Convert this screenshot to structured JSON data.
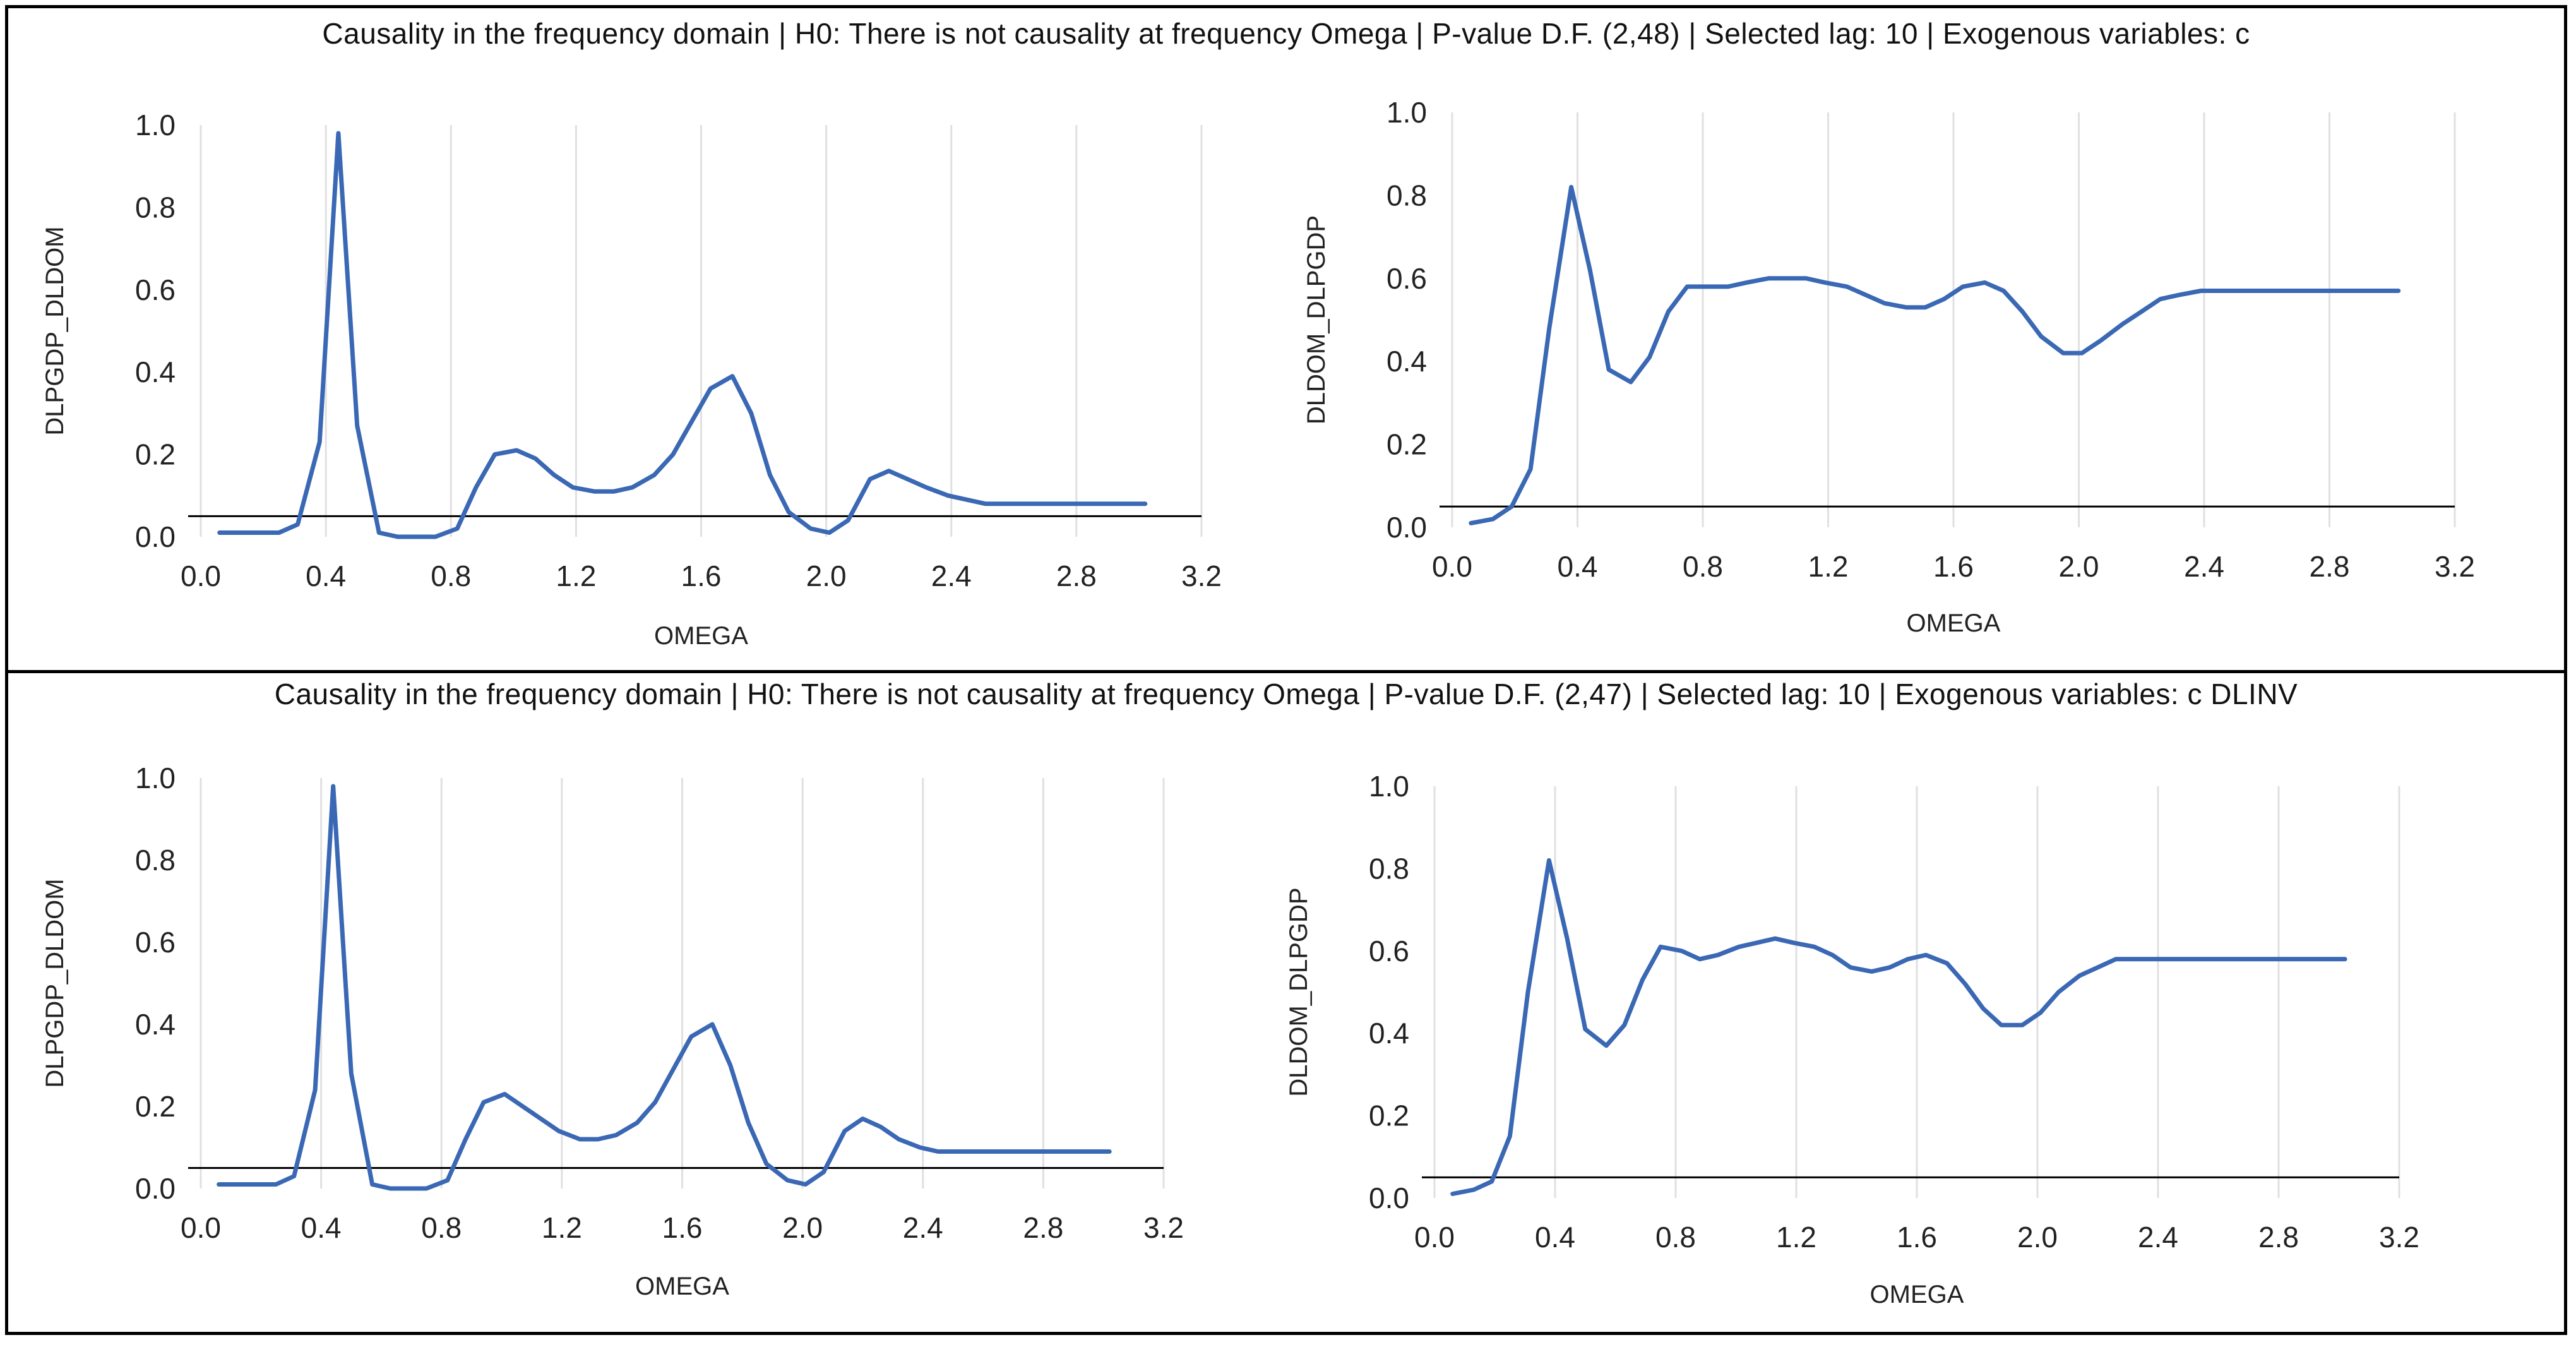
{
  "panels": [
    {
      "title": "Causality in the frequency domain | H0: There is not causality at frequency Omega | P-value D.F. (2,48) | Selected lag: 10 | Exogenous variables: c"
    },
    {
      "title": "Causality in the frequency domain | H0: There is not causality at frequency Omega | P-value D.F. (2,47) | Selected lag: 10 | Exogenous variables: c DLINV"
    }
  ],
  "colors": {
    "line": "#3A68B4",
    "grid": "#E0E0E0",
    "axis": "#000000"
  },
  "chart_data": [
    {
      "type": "line",
      "panel": 1,
      "position": "top-left",
      "xlabel": "OMEGA",
      "ylabel": "DLPGDP_DLDOM",
      "xlim": [
        0,
        3.2
      ],
      "ylim": [
        0,
        1.0
      ],
      "significance_line": 0.05,
      "x_ticks": [
        "0.0",
        "0.4",
        "0.8",
        "1.2",
        "1.6",
        "2.0",
        "2.4",
        "2.8",
        "3.2"
      ],
      "y_ticks": [
        "0.0",
        "0.2",
        "0.4",
        "0.6",
        "0.8",
        "1.0"
      ],
      "x": [
        0.06,
        0.13,
        0.19,
        0.25,
        0.31,
        0.38,
        0.44,
        0.5,
        0.57,
        0.63,
        0.69,
        0.75,
        0.82,
        0.88,
        0.94,
        1.01,
        1.07,
        1.13,
        1.19,
        1.26,
        1.32,
        1.38,
        1.45,
        1.51,
        1.57,
        1.63,
        1.7,
        1.76,
        1.82,
        1.88,
        1.95,
        2.01,
        2.07,
        2.14,
        2.2,
        2.26,
        2.32,
        2.39,
        2.45,
        2.51,
        2.58,
        2.64,
        2.7,
        2.76,
        2.83,
        2.89,
        2.95,
        3.02
      ],
      "y": [
        0.01,
        0.01,
        0.01,
        0.01,
        0.03,
        0.23,
        0.98,
        0.27,
        0.01,
        0.0,
        0.0,
        0.0,
        0.02,
        0.12,
        0.2,
        0.21,
        0.19,
        0.15,
        0.12,
        0.11,
        0.11,
        0.12,
        0.15,
        0.2,
        0.28,
        0.36,
        0.39,
        0.3,
        0.15,
        0.06,
        0.02,
        0.01,
        0.04,
        0.14,
        0.16,
        0.14,
        0.12,
        0.1,
        0.09,
        0.08,
        0.08,
        0.08,
        0.08,
        0.08,
        0.08,
        0.08,
        0.08,
        0.08
      ]
    },
    {
      "type": "line",
      "panel": 1,
      "position": "top-right",
      "xlabel": "OMEGA",
      "ylabel": "DLDOM_DLPGDP",
      "xlim": [
        0,
        3.2
      ],
      "ylim": [
        0,
        1.0
      ],
      "significance_line": 0.05,
      "x_ticks": [
        "0.0",
        "0.4",
        "0.8",
        "1.2",
        "1.6",
        "2.0",
        "2.4",
        "2.8",
        "3.2"
      ],
      "y_ticks": [
        "0.0",
        "0.2",
        "0.4",
        "0.6",
        "0.8",
        "1.0"
      ],
      "x": [
        0.06,
        0.13,
        0.19,
        0.25,
        0.31,
        0.38,
        0.44,
        0.5,
        0.57,
        0.63,
        0.69,
        0.75,
        0.82,
        0.88,
        0.94,
        1.01,
        1.07,
        1.13,
        1.19,
        1.26,
        1.32,
        1.38,
        1.45,
        1.51,
        1.57,
        1.63,
        1.7,
        1.76,
        1.82,
        1.88,
        1.95,
        2.01,
        2.07,
        2.14,
        2.2,
        2.26,
        2.32,
        2.39,
        2.45,
        2.51,
        2.58,
        2.64,
        2.7,
        2.76,
        2.83,
        2.89,
        2.95,
        3.02
      ],
      "y": [
        0.01,
        0.02,
        0.05,
        0.14,
        0.48,
        0.82,
        0.62,
        0.38,
        0.35,
        0.41,
        0.52,
        0.58,
        0.58,
        0.58,
        0.59,
        0.6,
        0.6,
        0.6,
        0.59,
        0.58,
        0.56,
        0.54,
        0.53,
        0.53,
        0.55,
        0.58,
        0.59,
        0.57,
        0.52,
        0.46,
        0.42,
        0.42,
        0.45,
        0.49,
        0.52,
        0.55,
        0.56,
        0.57,
        0.57,
        0.57,
        0.57,
        0.57,
        0.57,
        0.57,
        0.57,
        0.57,
        0.57,
        0.57
      ]
    },
    {
      "type": "line",
      "panel": 2,
      "position": "bottom-left",
      "xlabel": "OMEGA",
      "ylabel": "DLPGDP_DLDOM",
      "xlim": [
        0,
        3.2
      ],
      "ylim": [
        0,
        1.0
      ],
      "significance_line": 0.05,
      "x_ticks": [
        "0.0",
        "0.4",
        "0.8",
        "1.2",
        "1.6",
        "2.0",
        "2.4",
        "2.8",
        "3.2"
      ],
      "y_ticks": [
        "0.0",
        "0.2",
        "0.4",
        "0.6",
        "0.8",
        "1.0"
      ],
      "x": [
        0.06,
        0.13,
        0.19,
        0.25,
        0.31,
        0.38,
        0.44,
        0.5,
        0.57,
        0.63,
        0.69,
        0.75,
        0.82,
        0.88,
        0.94,
        1.01,
        1.07,
        1.13,
        1.19,
        1.26,
        1.32,
        1.38,
        1.45,
        1.51,
        1.57,
        1.63,
        1.7,
        1.76,
        1.82,
        1.88,
        1.95,
        2.01,
        2.07,
        2.14,
        2.2,
        2.26,
        2.32,
        2.39,
        2.45,
        2.51,
        2.58,
        2.64,
        2.7,
        2.76,
        2.83,
        2.89,
        2.95,
        3.02
      ],
      "y": [
        0.01,
        0.01,
        0.01,
        0.01,
        0.03,
        0.24,
        0.98,
        0.28,
        0.01,
        0.0,
        0.0,
        0.0,
        0.02,
        0.12,
        0.21,
        0.23,
        0.2,
        0.17,
        0.14,
        0.12,
        0.12,
        0.13,
        0.16,
        0.21,
        0.29,
        0.37,
        0.4,
        0.3,
        0.16,
        0.06,
        0.02,
        0.01,
        0.04,
        0.14,
        0.17,
        0.15,
        0.12,
        0.1,
        0.09,
        0.09,
        0.09,
        0.09,
        0.09,
        0.09,
        0.09,
        0.09,
        0.09,
        0.09
      ]
    },
    {
      "type": "line",
      "panel": 2,
      "position": "bottom-right",
      "xlabel": "OMEGA",
      "ylabel": "DLDOM_DLPGDP",
      "xlim": [
        0,
        3.2
      ],
      "ylim": [
        0,
        1.0
      ],
      "significance_line": 0.05,
      "x_ticks": [
        "0.0",
        "0.4",
        "0.8",
        "1.2",
        "1.6",
        "2.0",
        "2.4",
        "2.8",
        "3.2"
      ],
      "y_ticks": [
        "0.0",
        "0.2",
        "0.4",
        "0.6",
        "0.8",
        "1.0"
      ],
      "x": [
        0.06,
        0.13,
        0.19,
        0.25,
        0.31,
        0.38,
        0.44,
        0.5,
        0.57,
        0.63,
        0.69,
        0.75,
        0.82,
        0.88,
        0.94,
        1.01,
        1.07,
        1.13,
        1.19,
        1.26,
        1.32,
        1.38,
        1.45,
        1.51,
        1.57,
        1.63,
        1.7,
        1.76,
        1.82,
        1.88,
        1.95,
        2.01,
        2.07,
        2.14,
        2.2,
        2.26,
        2.32,
        2.39,
        2.45,
        2.51,
        2.58,
        2.64,
        2.7,
        2.76,
        2.83,
        2.89,
        2.95,
        3.02
      ],
      "y": [
        0.01,
        0.02,
        0.04,
        0.15,
        0.5,
        0.82,
        0.63,
        0.41,
        0.37,
        0.42,
        0.53,
        0.61,
        0.6,
        0.58,
        0.59,
        0.61,
        0.62,
        0.63,
        0.62,
        0.61,
        0.59,
        0.56,
        0.55,
        0.56,
        0.58,
        0.59,
        0.57,
        0.52,
        0.46,
        0.42,
        0.42,
        0.45,
        0.5,
        0.54,
        0.56,
        0.58,
        0.58,
        0.58,
        0.58,
        0.58,
        0.58,
        0.58,
        0.58,
        0.58,
        0.58,
        0.58,
        0.58,
        0.58
      ]
    }
  ]
}
